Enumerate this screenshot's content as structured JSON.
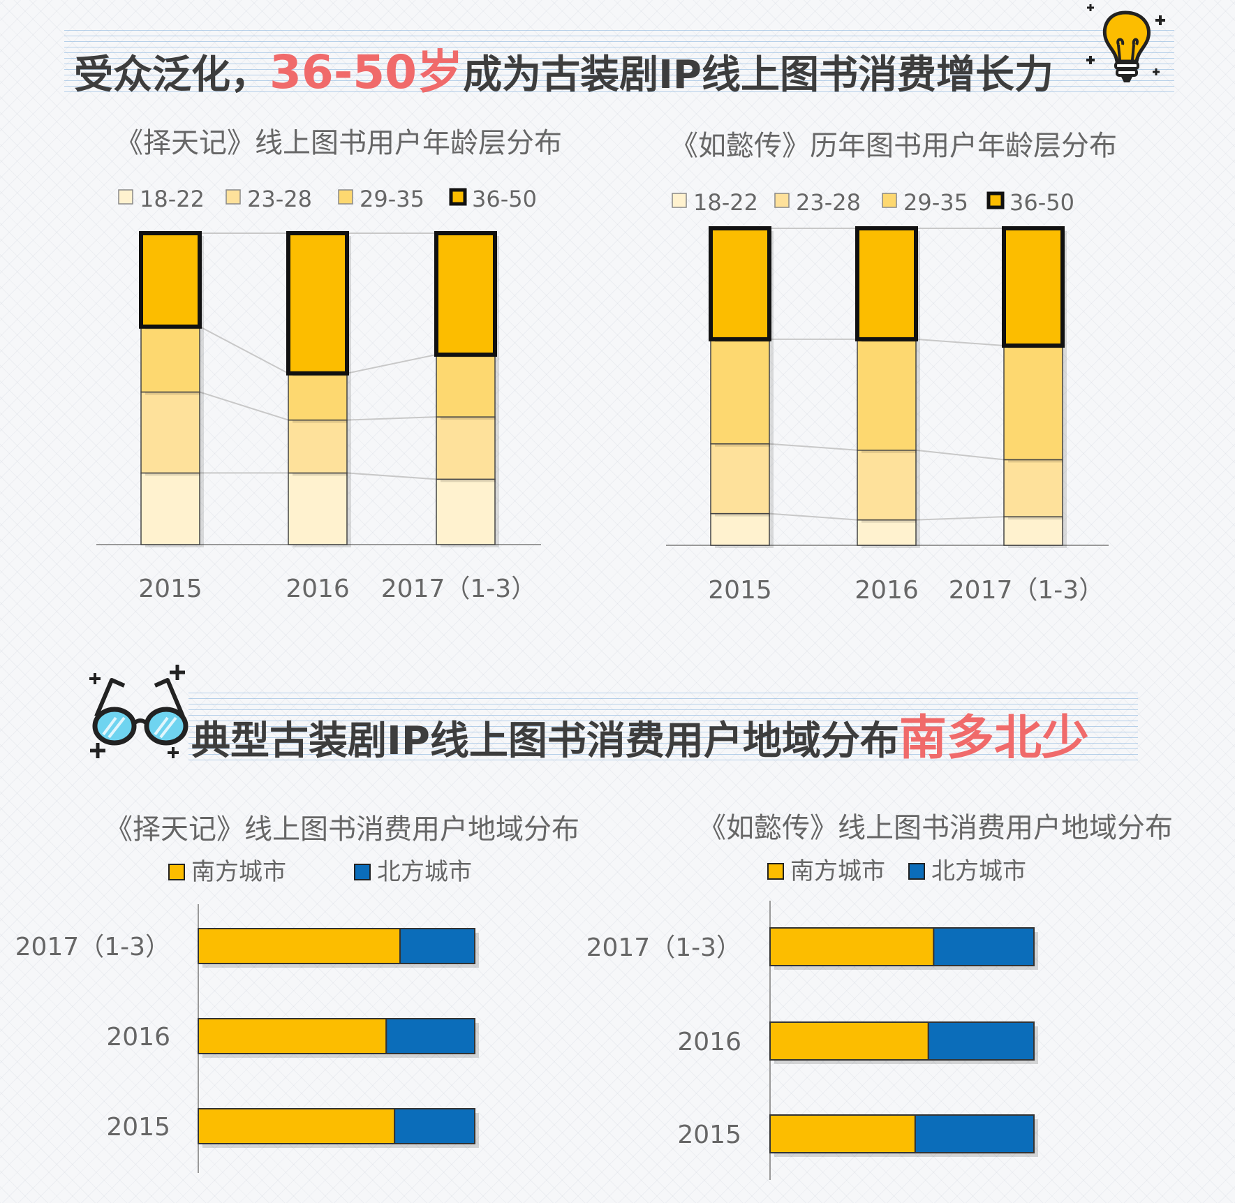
{
  "banner1": {
    "before": "受众泛化，",
    "highlight": "36-50岁",
    "after": "成为古装剧IP线上图书消费增长力",
    "icon": "lightbulb-icon"
  },
  "banner2": {
    "before": "典型古装剧IP线上图书消费用户地域分布",
    "highlight": "南多北少",
    "icon": "glasses-icon"
  },
  "colors": {
    "age_18_22": "#fff2cf",
    "age_23_28": "#fee19b",
    "age_29_35": "#fdd870",
    "age_36_50": "#fcbd00",
    "south": "#fcbd00",
    "north": "#0b6dba",
    "highlight": "#f06a6a"
  },
  "chart_data": [
    {
      "type": "bar",
      "stacked": true,
      "title": "《择天记》线上图书用户年龄层分布",
      "categories": [
        "2015",
        "2016",
        "2017（1-3）"
      ],
      "legend": [
        "18-22",
        "23-28",
        "29-35",
        "36-50"
      ],
      "series": [
        {
          "name": "18-22",
          "values": [
            23,
            23,
            21
          ]
        },
        {
          "name": "23-28",
          "values": [
            26,
            17,
            20
          ]
        },
        {
          "name": "29-35",
          "values": [
            21,
            15,
            20
          ]
        },
        {
          "name": "36-50",
          "values": [
            30,
            45,
            39
          ]
        }
      ],
      "ylim": [
        0,
        100
      ],
      "legend_position": "top"
    },
    {
      "type": "bar",
      "stacked": true,
      "title": "《如懿传》历年图书用户年龄层分布",
      "categories": [
        "2015",
        "2016",
        "2017（1-3）"
      ],
      "legend": [
        "18-22",
        "23-28",
        "29-35",
        "36-50"
      ],
      "series": [
        {
          "name": "18-22",
          "values": [
            10,
            8,
            9
          ]
        },
        {
          "name": "23-28",
          "values": [
            22,
            22,
            18
          ]
        },
        {
          "name": "29-35",
          "values": [
            33,
            35,
            36
          ]
        },
        {
          "name": "36-50",
          "values": [
            35,
            35,
            37
          ]
        }
      ],
      "ylim": [
        0,
        100
      ],
      "legend_position": "top"
    },
    {
      "type": "bar",
      "orientation": "horizontal",
      "stacked": true,
      "title": "《择天记》线上图书消费用户地域分布",
      "categories": [
        "2017（1-3）",
        "2016",
        "2015"
      ],
      "legend": [
        "南方城市",
        "北方城市"
      ],
      "series": [
        {
          "name": "南方城市",
          "values": [
            73,
            68,
            71
          ]
        },
        {
          "name": "北方城市",
          "values": [
            27,
            32,
            29
          ]
        }
      ],
      "xlim": [
        0,
        100
      ],
      "legend_position": "top"
    },
    {
      "type": "bar",
      "orientation": "horizontal",
      "stacked": true,
      "title": "《如懿传》线上图书消费用户地域分布",
      "categories": [
        "2017（1-3）",
        "2016",
        "2015"
      ],
      "legend": [
        "南方城市",
        "北方城市"
      ],
      "series": [
        {
          "name": "南方城市",
          "values": [
            62,
            60,
            55
          ]
        },
        {
          "name": "北方城市",
          "values": [
            38,
            40,
            45
          ]
        }
      ],
      "xlim": [
        0,
        100
      ],
      "legend_position": "top"
    }
  ]
}
